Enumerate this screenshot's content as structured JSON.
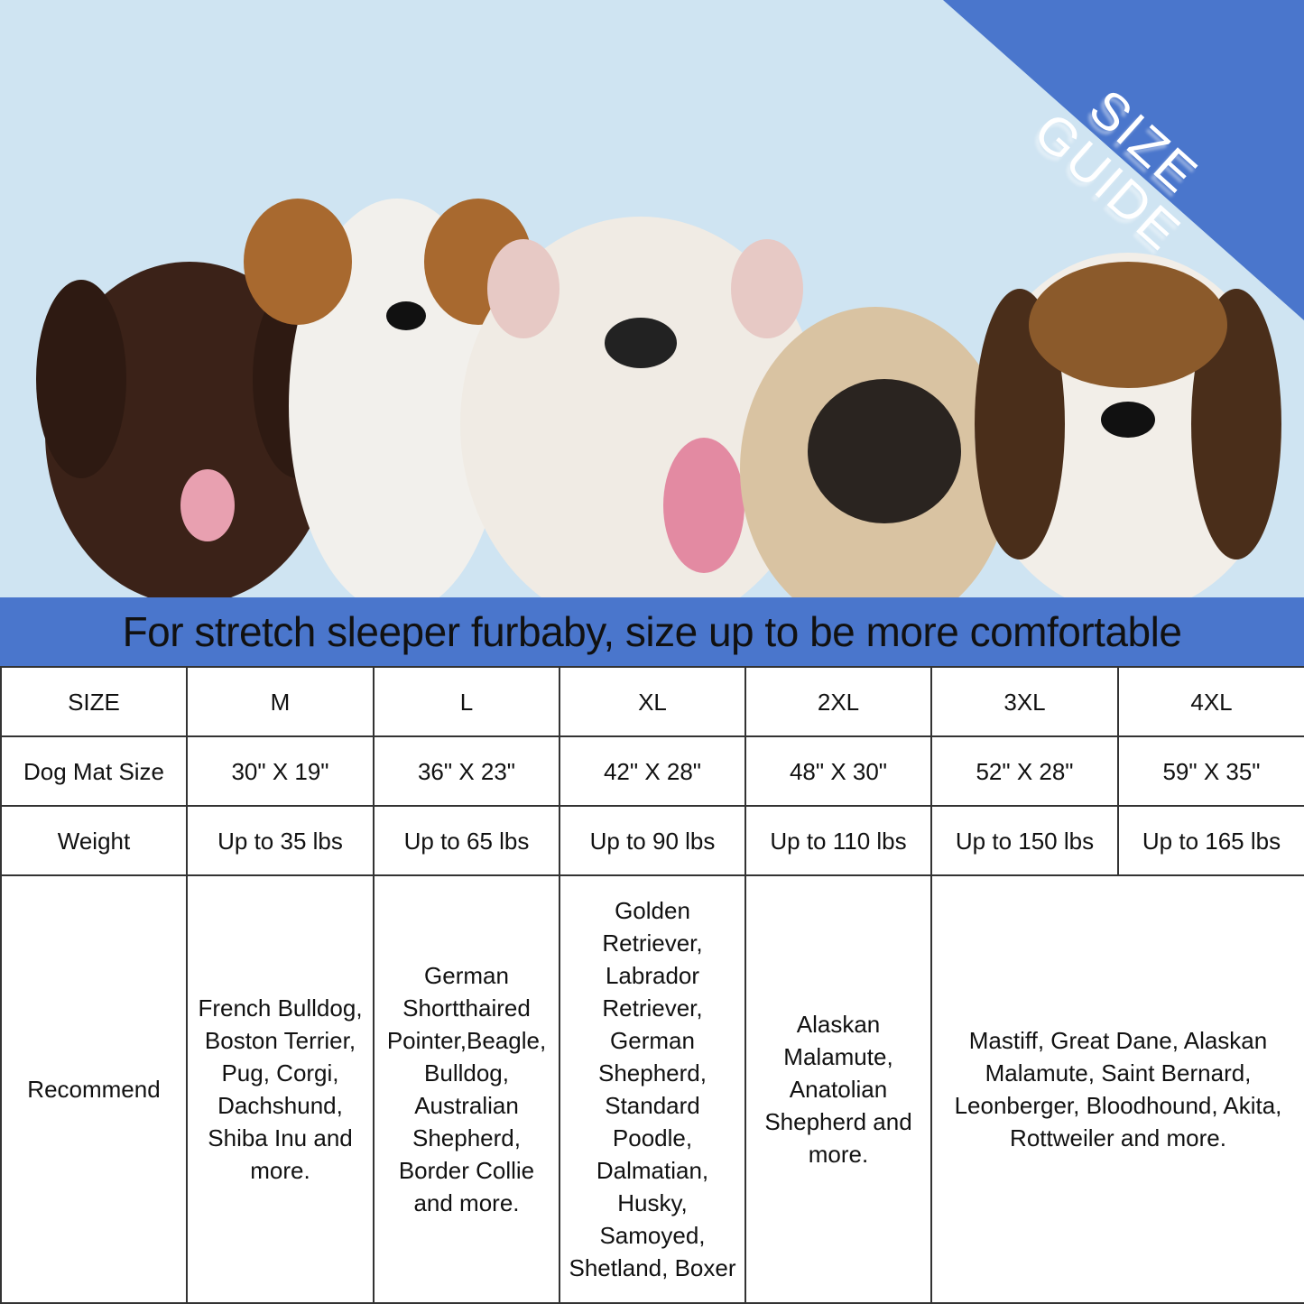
{
  "badge": {
    "line1": "SIZE",
    "line2": "GUIDE"
  },
  "banner": "For stretch sleeper furbaby, size up to be more comfortable",
  "colors": {
    "background": "#cfe4f2",
    "accent": "#4a76cc"
  },
  "table": {
    "rows": [
      {
        "label": "SIZE",
        "cells": [
          "M",
          "L",
          "XL",
          "2XL",
          "3XL",
          "4XL"
        ]
      },
      {
        "label": "Dog Mat Size",
        "cells": [
          "30\" X 19\"",
          "36\" X 23\"",
          "42\" X 28\"",
          "48\" X 30\"",
          "52\" X 28\"",
          "59\" X 35\""
        ]
      },
      {
        "label": "Weight",
        "cells": [
          "Up to 35 lbs",
          "Up to 65 lbs",
          "Up to 90 lbs",
          "Up to 110 lbs",
          "Up to 150 lbs",
          "Up to 165 lbs"
        ]
      }
    ],
    "recommend": {
      "label": "Recommend",
      "cells": [
        "French Bulldog, Boston Terrier, Pug, Corgi, Dachshund, Shiba Inu and more.",
        "German Shortthaired Pointer,Beagle, Bulldog, Australian Shepherd, Border Collie and more.",
        "Golden Retriever, Labrador Retriever, German Shepherd, Standard Poodle, Dalmatian, Husky, Samoyed, Shetland, Boxer",
        "Alaskan Malamute, Anatolian Shepherd and more.",
        "Mastiff, Great Dane, Alaskan Malamute, Saint Bernard, Leonberger, Bloodhound, Akita, Rottweiler and more."
      ]
    }
  }
}
